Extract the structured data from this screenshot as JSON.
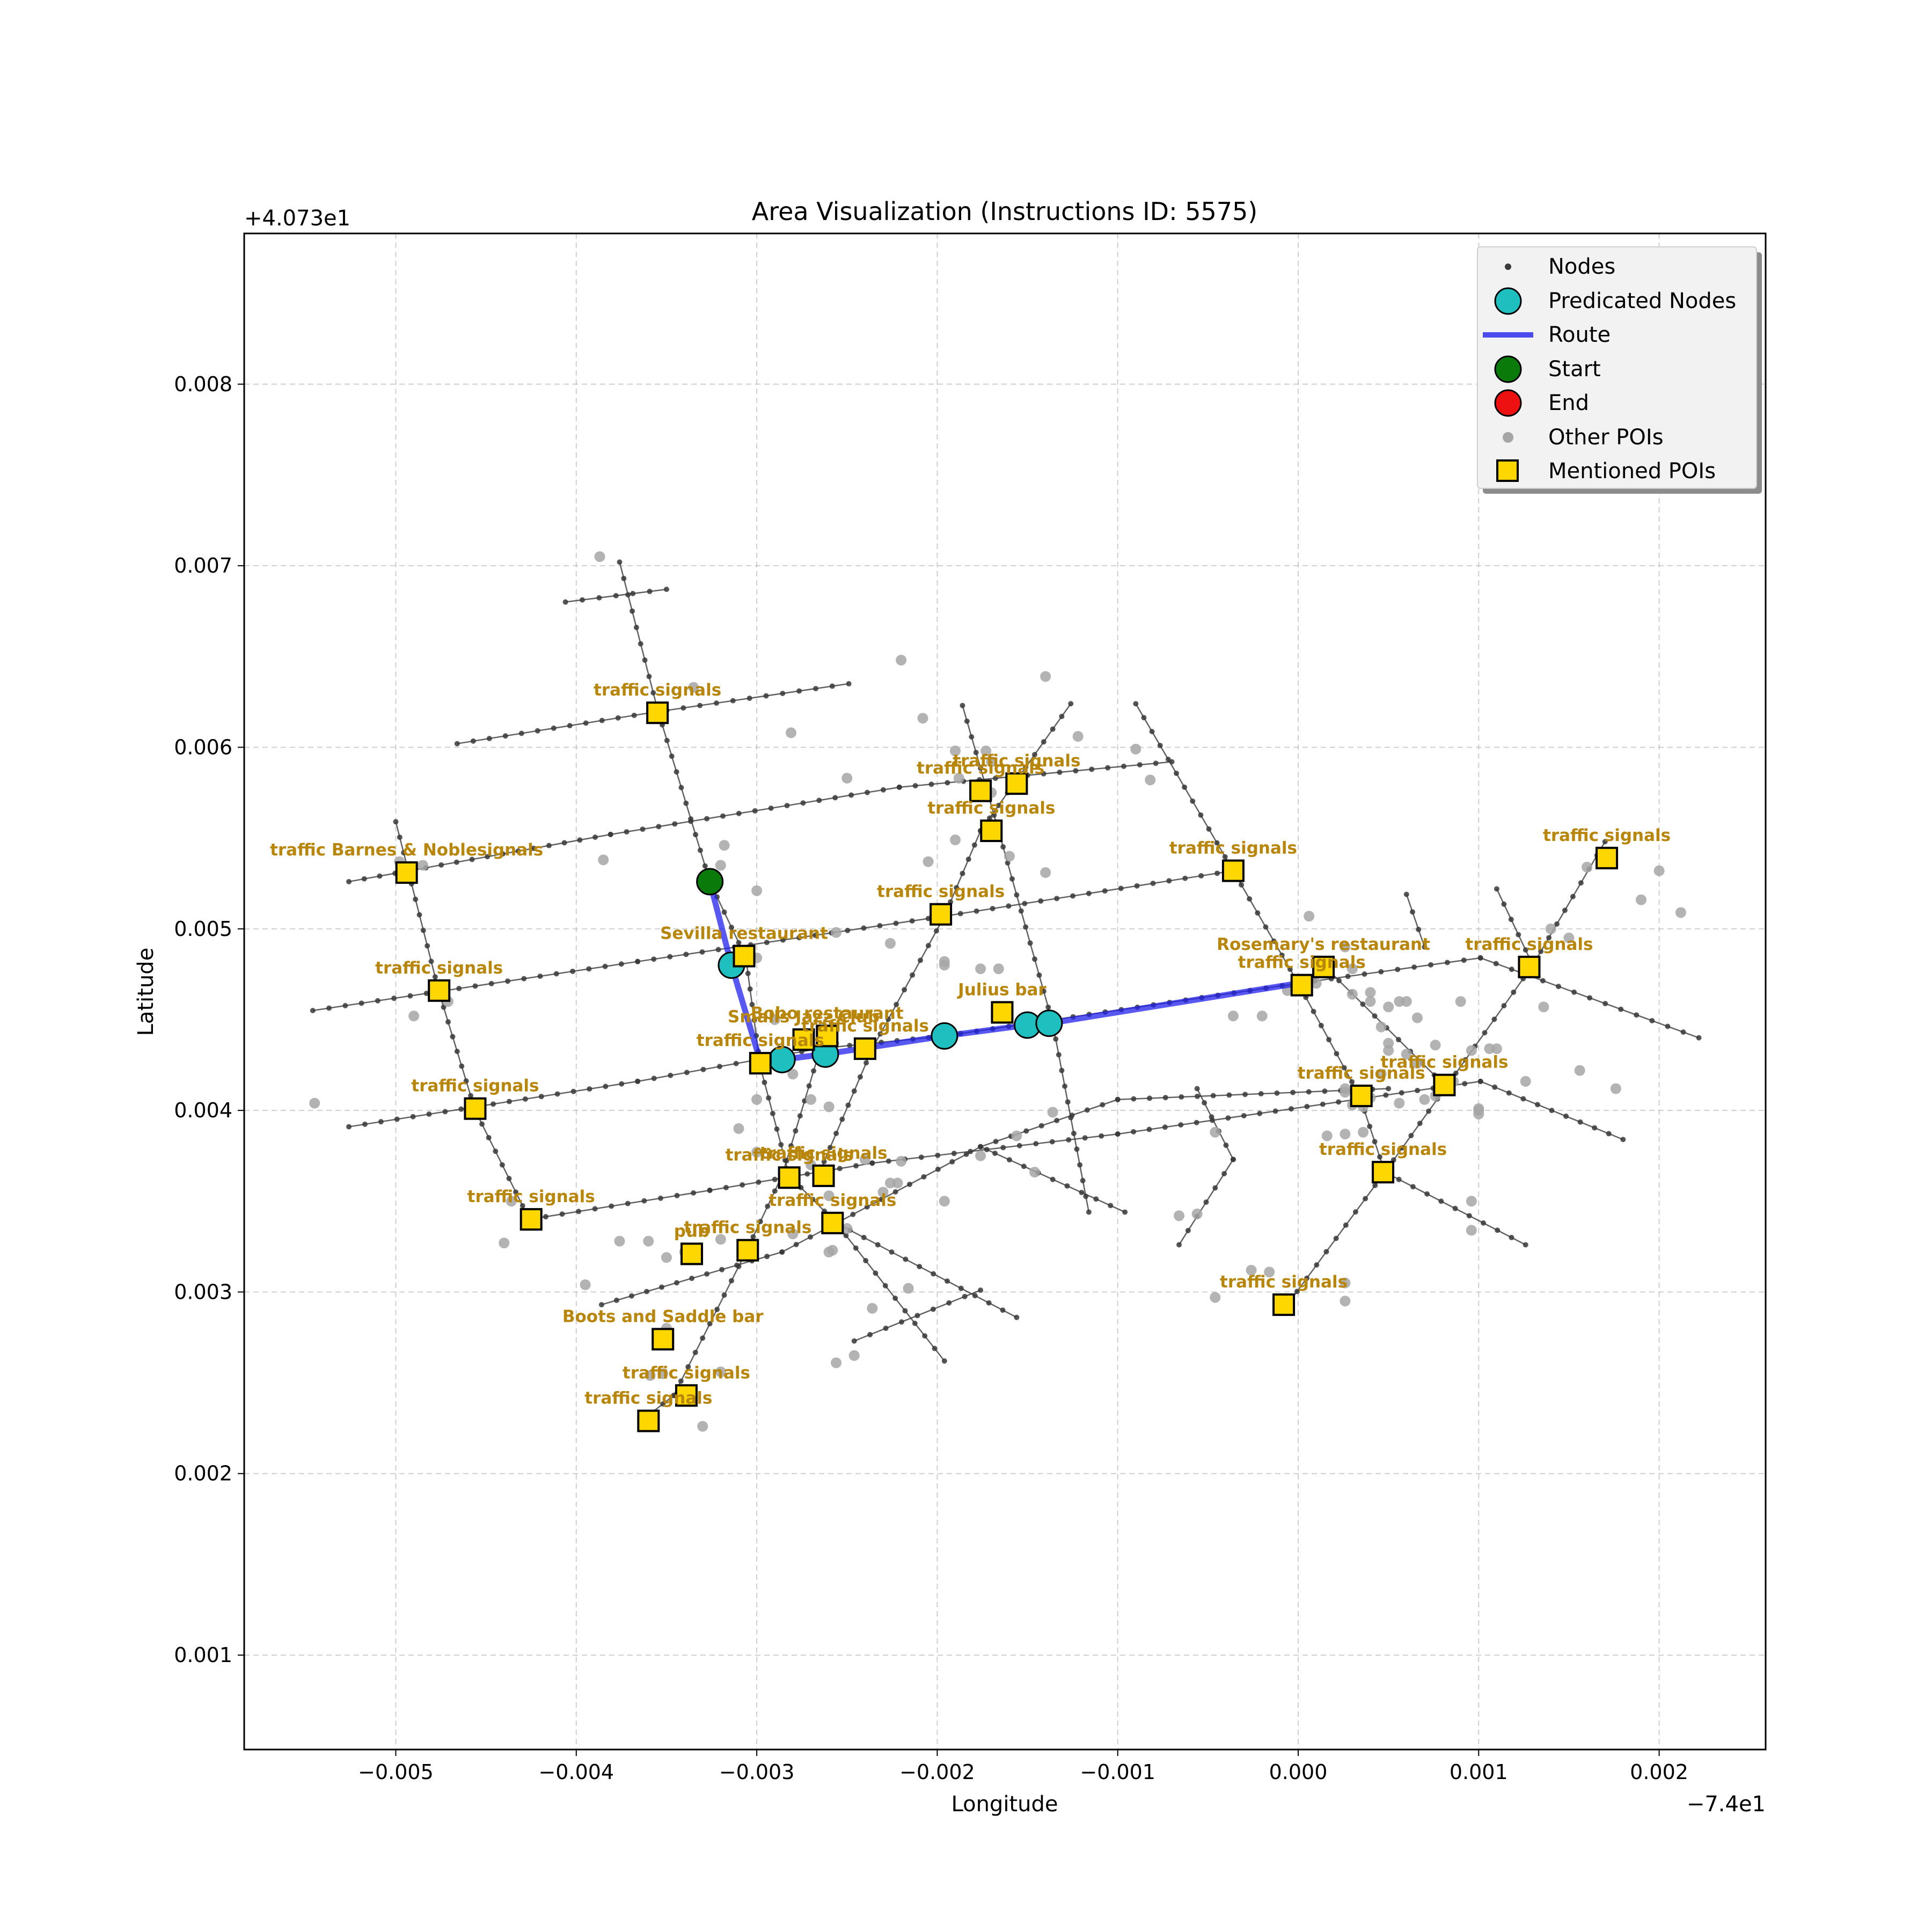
{
  "chart_data": {
    "type": "scatter",
    "title": "Area Visualization (Instructions ID: 5575)",
    "xlabel": "Longitude",
    "ylabel": "Latitude",
    "x_offset_label": "−7.4e1",
    "y_offset_label": "+4.073e1",
    "xlim": [
      -0.00584,
      0.00259
    ],
    "ylim": [
      0.00048,
      0.00883
    ],
    "x_ticks": [
      -0.005,
      -0.004,
      -0.003,
      -0.002,
      -0.001,
      0.0,
      0.001,
      0.002
    ],
    "x_tick_labels": [
      "−0.005",
      "−0.004",
      "−0.003",
      "−0.002",
      "−0.001",
      "0.000",
      "0.001",
      "0.002"
    ],
    "y_ticks": [
      0.001,
      0.002,
      0.003,
      0.004,
      0.005,
      0.006,
      0.007,
      0.008
    ],
    "y_tick_labels": [
      "0.001",
      "0.002",
      "0.003",
      "0.004",
      "0.005",
      "0.006",
      "0.007",
      "0.008"
    ],
    "grid": true,
    "legend_position": "top-right",
    "legend": [
      "Nodes",
      "Predicated Nodes",
      "Route",
      "Start",
      "End",
      "Other POIs",
      "Mentioned POIs"
    ],
    "colors": {
      "nodes": "#3a3a3a",
      "predicated": "#1fbfbf",
      "route": "#2222ee",
      "start": "#0a7a0a",
      "end": "#ee1111",
      "other_poi": "#a6a6a6",
      "mentioned_poi": "#ffd700",
      "poi_label": "#b8860b"
    },
    "streets": [
      [
        [
          -0.00466,
          0.00602
        ],
        [
          -0.00359,
          0.00619
        ],
        [
          -0.00249,
          0.00635
        ]
      ],
      [
        [
          -0.00526,
          0.00526
        ],
        [
          -0.00381,
          0.00552
        ],
        [
          -0.00221,
          0.00578
        ],
        [
          -0.0007,
          0.00592
        ]
      ],
      [
        [
          -0.00546,
          0.00455
        ],
        [
          -0.00366,
          0.00482
        ],
        [
          -0.00196,
          0.00507
        ],
        [
          -0.00036,
          0.00532
        ]
      ],
      [
        [
          -0.00526,
          0.00391
        ],
        [
          -0.00366,
          0.00416
        ],
        [
          -0.00266,
          0.00434
        ],
        [
          -0.00196,
          0.00441
        ],
        [
          0.0,
          0.0047
        ],
        [
          0.00101,
          0.00484
        ],
        [
          0.00222,
          0.0044
        ]
      ],
      [
        [
          -0.00426,
          0.0034
        ],
        [
          -0.00326,
          0.00356
        ],
        [
          -0.00236,
          0.00371
        ],
        [
          -0.001,
          0.00387
        ],
        [
          0.00101,
          0.00416
        ],
        [
          0.0018,
          0.00384
        ]
      ],
      [
        [
          -0.00386,
          0.00293
        ],
        [
          -0.00286,
          0.00322
        ],
        [
          -0.00176,
          0.0038
        ],
        [
          -0.001,
          0.00406
        ],
        [
          0.0005,
          0.00412
        ]
      ],
      [
        [
          -0.00406,
          0.0068
        ],
        [
          -0.0035,
          0.00687
        ]
      ],
      [
        [
          -0.005,
          0.00559
        ],
        [
          -0.00476,
          0.00465
        ],
        [
          -0.00456,
          0.004
        ],
        [
          -0.00426,
          0.0034
        ]
      ],
      [
        [
          -0.00376,
          0.00702
        ],
        [
          -0.00355,
          0.00621
        ],
        [
          -0.00326,
          0.00526
        ],
        [
          -0.00306,
          0.00484
        ],
        [
          -0.00298,
          0.00424
        ],
        [
          -0.00282,
          0.00364
        ],
        [
          -0.00256,
          0.00338
        ],
        [
          -0.00196,
          0.00262
        ]
      ],
      [
        [
          -0.00246,
          0.00273
        ],
        [
          -0.00176,
          0.00301
        ]
      ],
      [
        [
          -0.00364,
          0.00229
        ],
        [
          -0.00346,
          0.00243
        ],
        [
          -0.00306,
          0.00322
        ],
        [
          -0.00286,
          0.00364
        ],
        [
          -0.00266,
          0.0043
        ],
        [
          -0.00256,
          0.00437
        ]
      ],
      [
        [
          -0.00256,
          0.00338
        ],
        [
          -0.00156,
          0.00286
        ]
      ],
      [
        [
          -0.00266,
          0.00364
        ],
        [
          -0.00236,
          0.00434
        ],
        [
          -0.00196,
          0.00507
        ],
        [
          -0.00176,
          0.00554
        ],
        [
          -0.00126,
          0.00624
        ]
      ],
      [
        [
          -0.00186,
          0.00623
        ],
        [
          -0.00166,
          0.00554
        ],
        [
          -0.00136,
          0.00448
        ],
        [
          -0.00116,
          0.00344
        ]
      ],
      [
        [
          -0.0009,
          0.00624
        ],
        [
          -0.00036,
          0.00532
        ],
        [
          0.0,
          0.0047
        ],
        [
          0.00034,
          0.00408
        ],
        [
          0.00048,
          0.00366
        ],
        [
          0.00126,
          0.00326
        ]
      ],
      [
        [
          -6e-05,
          0.00293
        ],
        [
          0.00048,
          0.00366
        ],
        [
          0.00082,
          0.00413
        ],
        [
          0.0013,
          0.0048
        ],
        [
          0.0017,
          0.00548
        ]
      ],
      [
        [
          0.00016,
          0.00478
        ],
        [
          0.00082,
          0.00413
        ]
      ],
      [
        [
          -0.00066,
          0.00326
        ],
        [
          -0.00036,
          0.00373
        ],
        [
          -0.00056,
          0.00412
        ]
      ],
      [
        [
          -0.00096,
          0.00344
        ],
        [
          -0.00176,
          0.0038
        ]
      ],
      [
        [
          0.0011,
          0.00522
        ],
        [
          0.0013,
          0.0048
        ]
      ],
      [
        [
          0.0006,
          0.00519
        ],
        [
          0.0007,
          0.0049
        ]
      ]
    ],
    "route": [
      [
        -0.00326,
        0.00526
      ],
      [
        -0.00314,
        0.0048
      ],
      [
        -0.00298,
        0.00427
      ],
      [
        -0.00286,
        0.00428
      ],
      [
        -0.00262,
        0.00431
      ],
      [
        -0.00196,
        0.00441
      ],
      [
        -0.0015,
        0.00447
      ],
      [
        -0.00138,
        0.00448
      ],
      [
        0.0,
        0.0047
      ]
    ],
    "predicated_nodes": [
      [
        -0.00314,
        0.0048
      ],
      [
        -0.00286,
        0.00428
      ],
      [
        -0.00262,
        0.00431
      ],
      [
        -0.00196,
        0.00441
      ],
      [
        -0.0015,
        0.00447
      ],
      [
        -0.00138,
        0.00448
      ]
    ],
    "start": [
      -0.00326,
      0.00526
    ],
    "end": null,
    "other_pois": [
      [
        -0.00387,
        0.00705
      ],
      [
        -0.00335,
        0.00633
      ],
      [
        -0.0022,
        0.00648
      ],
      [
        -0.00281,
        0.00608
      ],
      [
        -0.0025,
        0.00583
      ],
      [
        -0.00208,
        0.00616
      ],
      [
        -0.0014,
        0.00639
      ],
      [
        -0.00122,
        0.00606
      ],
      [
        -0.0009,
        0.00599
      ],
      [
        -0.00082,
        0.00582
      ],
      [
        -0.00173,
        0.00598
      ],
      [
        -0.0017,
        0.00592
      ],
      [
        -0.0019,
        0.00598
      ],
      [
        -0.00188,
        0.00583
      ],
      [
        -0.0017,
        0.00575
      ],
      [
        -0.0019,
        0.00549
      ],
      [
        -0.0016,
        0.0054
      ],
      [
        -0.0014,
        0.00531
      ],
      [
        -0.00205,
        0.00537
      ],
      [
        -0.003,
        0.00521
      ],
      [
        -0.0032,
        0.00535
      ],
      [
        -0.00318,
        0.00546
      ],
      [
        -0.00385,
        0.00538
      ],
      [
        -0.00485,
        0.00535
      ],
      [
        -0.00498,
        0.00537
      ],
      [
        -0.00471,
        0.0046
      ],
      [
        -0.00545,
        0.00404
      ],
      [
        -0.0049,
        0.00452
      ],
      [
        -0.003,
        0.00484
      ],
      [
        -0.0029,
        0.0045
      ],
      [
        -0.0028,
        0.0042
      ],
      [
        -0.003,
        0.00406
      ],
      [
        -0.0027,
        0.00406
      ],
      [
        -0.0026,
        0.00402
      ],
      [
        -0.0031,
        0.0039
      ],
      [
        -0.003,
        0.00377
      ],
      [
        -0.0027,
        0.0037
      ],
      [
        -0.0024,
        0.00373
      ],
      [
        -0.0022,
        0.00372
      ],
      [
        -0.00222,
        0.0036
      ],
      [
        -0.0023,
        0.00355
      ],
      [
        -0.0026,
        0.00353
      ],
      [
        -0.0028,
        0.00332
      ],
      [
        -0.0026,
        0.00322
      ],
      [
        -0.00258,
        0.00323
      ],
      [
        -0.0025,
        0.00335
      ],
      [
        -0.0032,
        0.00329
      ],
      [
        -0.0034,
        0.00322
      ],
      [
        -0.0035,
        0.00319
      ],
      [
        -0.0036,
        0.00328
      ],
      [
        -0.00376,
        0.00328
      ],
      [
        -0.00395,
        0.00304
      ],
      [
        -0.0044,
        0.00327
      ],
      [
        -0.00436,
        0.0035
      ],
      [
        -0.0035,
        0.0028
      ],
      [
        -0.00352,
        0.00255
      ],
      [
        -0.00359,
        0.00254
      ],
      [
        -0.0032,
        0.00256
      ],
      [
        -0.0033,
        0.00226
      ],
      [
        -0.0036,
        0.0023
      ],
      [
        -0.00256,
        0.00261
      ],
      [
        -0.00246,
        0.00265
      ],
      [
        -0.00236,
        0.00291
      ],
      [
        -0.00216,
        0.00302
      ],
      [
        -0.00196,
        0.0035
      ],
      [
        -0.00226,
        0.0036
      ],
      [
        -0.00176,
        0.00375
      ],
      [
        -0.00156,
        0.00386
      ],
      [
        -0.00146,
        0.00366
      ],
      [
        -0.00136,
        0.00399
      ],
      [
        -0.00196,
        0.0048
      ],
      [
        -0.00176,
        0.00478
      ],
      [
        -0.00196,
        0.00482
      ],
      [
        -0.00226,
        0.00492
      ],
      [
        -0.00256,
        0.00498
      ],
      [
        -0.00166,
        0.00478
      ],
      [
        -0.00036,
        0.00452
      ],
      [
        -0.00046,
        0.00388
      ],
      [
        -0.00056,
        0.00343
      ],
      [
        -0.00066,
        0.00342
      ],
      [
        -0.00046,
        0.00297
      ],
      [
        -0.00026,
        0.00312
      ],
      [
        -0.00016,
        0.00311
      ],
      [
        0.00026,
        0.00305
      ],
      [
        0.00026,
        0.00295
      ],
      [
        6e-05,
        0.00507
      ],
      [
        0.00026,
        0.0049
      ],
      [
        0.0004,
        0.0046
      ],
      [
        0.0003,
        0.00478
      ],
      [
        0.0005,
        0.00457
      ],
      [
        0.00056,
        0.0046
      ],
      [
        0.00046,
        0.00446
      ],
      [
        0.0006,
        0.00431
      ],
      [
        0.00066,
        0.00451
      ],
      [
        0.00076,
        0.00436
      ],
      [
        0.00046,
        0.0042
      ],
      [
        0.00026,
        0.00412
      ],
      [
        0.00016,
        0.00386
      ],
      [
        0.00026,
        0.00387
      ],
      [
        0.00036,
        0.00388
      ],
      [
        0.00096,
        0.00433
      ],
      [
        0.001,
        0.00398
      ],
      [
        0.001,
        0.00401
      ],
      [
        0.00096,
        0.0035
      ],
      [
        0.00096,
        0.00334
      ],
      [
        0.00106,
        0.00434
      ],
      [
        0.00126,
        0.00416
      ],
      [
        0.00176,
        0.00412
      ],
      [
        0.00136,
        0.00457
      ],
      [
        0.0014,
        0.005
      ],
      [
        0.0015,
        0.00495
      ],
      [
        0.0016,
        0.00534
      ],
      [
        0.0019,
        0.00516
      ],
      [
        0.002,
        0.00532
      ],
      [
        0.00212,
        0.00509
      ],
      [
        0.0017,
        0.00538
      ],
      [
        0.0009,
        0.0046
      ],
      [
        0.0005,
        0.00437
      ],
      [
        0.0003,
        0.00464
      ],
      [
        0.0004,
        0.00407
      ],
      [
        0.00026,
        0.0041
      ],
      [
        0.0003,
        0.00403
      ],
      [
        0.00036,
        0.00402
      ],
      [
        0.00056,
        0.00404
      ],
      [
        0.0007,
        0.00406
      ],
      [
        0.0011,
        0.00434
      ],
      [
        0.001,
        0.004
      ],
      [
        0.00156,
        0.00422
      ],
      [
        0.0008,
        0.00414
      ],
      [
        0.00086,
        0.00416
      ],
      [
        0.00076,
        0.00408
      ],
      [
        0.00066,
        0.00426
      ],
      [
        0.0004,
        0.00465
      ],
      [
        0.0005,
        0.00433
      ],
      [
        0.0006,
        0.0046
      ],
      [
        0.0001,
        0.0047
      ],
      [
        -0.0002,
        0.00452
      ],
      [
        -6e-05,
        0.00466
      ]
    ],
    "mentioned_pois": [
      {
        "label": "traffic signals",
        "x": -0.00355,
        "y": 0.00619
      },
      {
        "label": "traffic signals",
        "x": -0.00176,
        "y": 0.00576
      },
      {
        "label": "traffic signals",
        "x": -0.00156,
        "y": 0.0058
      },
      {
        "label": "traffic signals",
        "x": -0.0017,
        "y": 0.00554
      },
      {
        "label": "traffic Barnes & Noblesignals",
        "x": -0.00494,
        "y": 0.00531
      },
      {
        "label": "traffic signals",
        "x": -0.00036,
        "y": 0.00532
      },
      {
        "label": "traffic signals",
        "x": 0.00171,
        "y": 0.00539
      },
      {
        "label": "traffic signals",
        "x": -0.00198,
        "y": 0.00508
      },
      {
        "label": "Sevilla restaurant",
        "x": -0.00307,
        "y": 0.00485
      },
      {
        "label": "traffic signals",
        "x": -0.00476,
        "y": 0.00466
      },
      {
        "label": "Rosemary's restaurant",
        "x": 0.00014,
        "y": 0.00479
      },
      {
        "label": "traffic signals",
        "x": 2e-05,
        "y": 0.00469
      },
      {
        "label": "traffic signals",
        "x": 0.00128,
        "y": 0.00479
      },
      {
        "label": "Julius bar",
        "x": -0.00164,
        "y": 0.00454
      },
      {
        "label": "Smalls Jazz Club",
        "x": -0.00274,
        "y": 0.00439
      },
      {
        "label": "Bobo restaurant",
        "x": -0.00261,
        "y": 0.00441
      },
      {
        "label": "traffic signals",
        "x": -0.0024,
        "y": 0.00434
      },
      {
        "label": "traffic signals",
        "x": -0.00298,
        "y": 0.00426
      },
      {
        "label": "traffic signals",
        "x": 0.00035,
        "y": 0.00408
      },
      {
        "label": "traffic signals",
        "x": 0.00081,
        "y": 0.00414
      },
      {
        "label": "traffic signals",
        "x": -0.00456,
        "y": 0.00401
      },
      {
        "label": "traffic signals",
        "x": -0.00282,
        "y": 0.00363
      },
      {
        "label": "traffic signals",
        "x": -0.00263,
        "y": 0.00364
      },
      {
        "label": "traffic signals",
        "x": 0.00047,
        "y": 0.00366
      },
      {
        "label": "traffic signals",
        "x": -0.00425,
        "y": 0.0034
      },
      {
        "label": "traffic signals",
        "x": -0.00258,
        "y": 0.00338
      },
      {
        "label": "traffic signals",
        "x": -0.00305,
        "y": 0.00323
      },
      {
        "label": "pub",
        "x": -0.00336,
        "y": 0.00321
      },
      {
        "label": "traffic signals",
        "x": -8e-05,
        "y": 0.00293
      },
      {
        "label": "Boots and Saddle bar",
        "x": -0.00352,
        "y": 0.00274
      },
      {
        "label": "traffic signals",
        "x": -0.00339,
        "y": 0.00243
      },
      {
        "label": "traffic signals",
        "x": -0.0036,
        "y": 0.00229
      }
    ]
  }
}
